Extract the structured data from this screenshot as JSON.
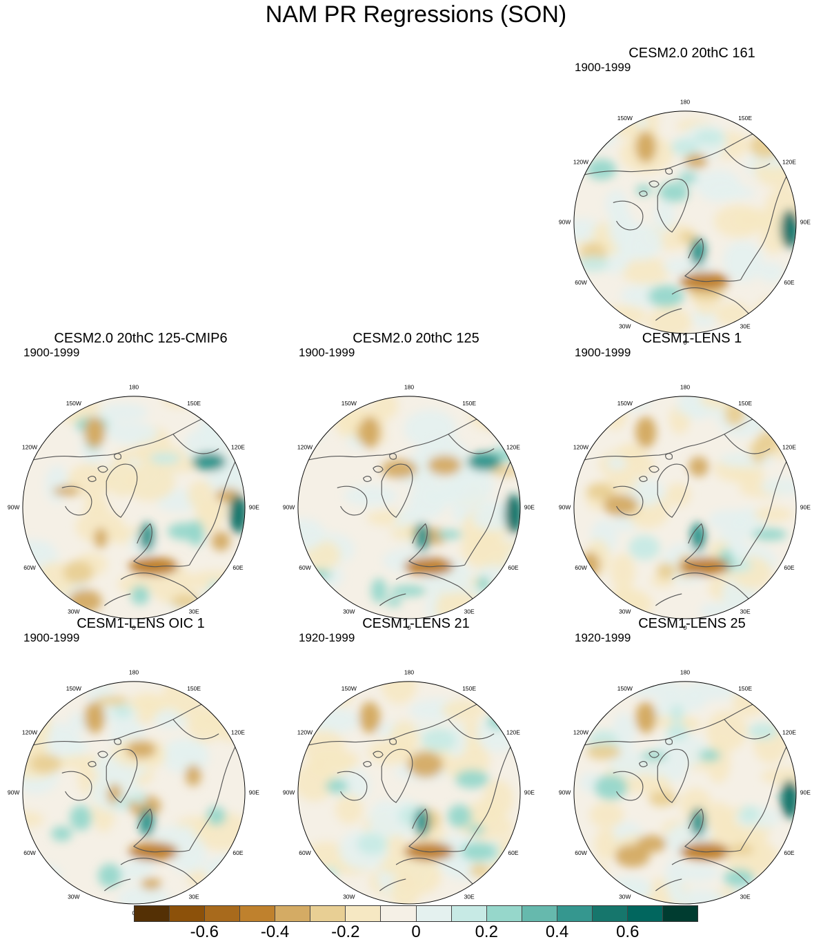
{
  "title": "NAM PR Regressions (SON)",
  "panels": [
    {
      "title": "CESM2.0 20thC 161",
      "years": "1900-1999"
    },
    {
      "title": "CESM2.0 20thC 125-CMIP6",
      "years": "1900-1999"
    },
    {
      "title": "CESM2.0 20thC 125",
      "years": "1900-1999"
    },
    {
      "title": "CESM1-LENS 1",
      "years": "1900-1999"
    },
    {
      "title": "CESM1-LENS OIC 1",
      "years": "1900-1999"
    },
    {
      "title": "CESM1-LENS 21",
      "years": "1920-1999"
    },
    {
      "title": "CESM1-LENS 25",
      "years": "1920-1999"
    }
  ],
  "longitude_labels": {
    "top": "180",
    "top_left": "150W",
    "top_right": "150E",
    "upper_left": "120W",
    "upper_right": "120E",
    "left": "90W",
    "right": "90E",
    "lower_left": "60W",
    "lower_right": "60E",
    "bottom_left": "30W",
    "bottom_right": "30E",
    "bottom": "0"
  },
  "colorbar": {
    "colors": [
      "#543005",
      "#8c510a",
      "#a86a1c",
      "#bf812d",
      "#d4ab64",
      "#e8cf94",
      "#f6e8c3",
      "#f5f0e6",
      "#e4f1ef",
      "#c7eae5",
      "#96d7cb",
      "#66b9ad",
      "#35978f",
      "#16766c",
      "#01665e",
      "#003c30"
    ],
    "labels": [
      "-0.6",
      "-0.4",
      "-0.2",
      "0",
      "0.2",
      "0.4",
      "0.6"
    ]
  }
}
